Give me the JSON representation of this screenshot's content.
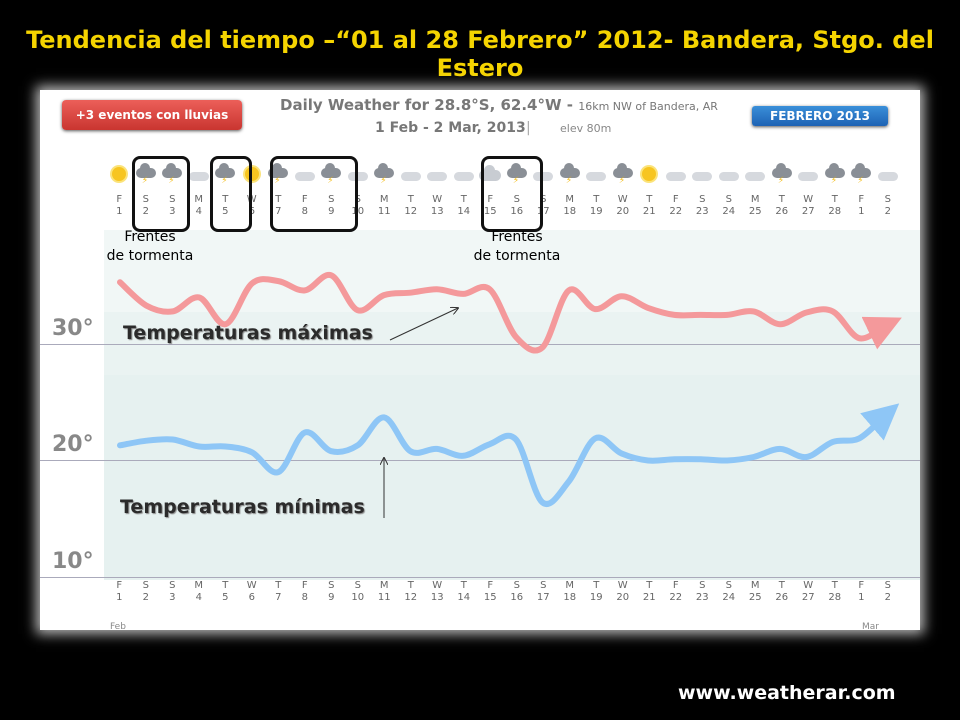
{
  "title": "Tendencia del tiempo –“01 al 28 Febrero” 2012- Bandera, Stgo. del Estero",
  "badges": {
    "events": "+3 eventos con lluvias",
    "month": "FEBRERO 2013"
  },
  "header": {
    "line1_main": "Daily Weather for 28.8°S, 62.4°W - ",
    "line1_small": "16km NW of Bandera, AR",
    "dates": "1 Feb - 2 Mar, 2013",
    "separator": "|",
    "elev": "elev 80m"
  },
  "fronts": [
    "Frentes",
    "de tormenta"
  ],
  "annotations": {
    "max": "Temperaturas máximas",
    "min": "Temperaturas mínimas"
  },
  "month_labels": {
    "start": "Feb",
    "end": "Mar"
  },
  "footer": "www.weatherar.com",
  "colors": {
    "max_line": "#f4999b",
    "min_line": "#8ec6f6",
    "title": "#f5d400"
  },
  "icons": [
    "sun",
    "storm",
    "storm",
    "suncloud",
    "storm",
    "sun",
    "storm",
    "suncloud",
    "storm",
    "suncloud",
    "storm",
    "suncloud",
    "suncloud",
    "suncloud",
    "cloud",
    "storm",
    "suncloud",
    "storm",
    "suncloud",
    "storm",
    "sun",
    "suncloud",
    "suncloud",
    "suncloud",
    "suncloud",
    "storm",
    "suncloud",
    "storm",
    "storm",
    "suncloud"
  ],
  "chart_data": {
    "type": "line",
    "title": "Daily Weather for 28.8°S, 62.4°W - 16km NW of Bandera, AR",
    "categories": [
      "1",
      "2",
      "3",
      "4",
      "5",
      "6",
      "7",
      "8",
      "9",
      "10",
      "11",
      "12",
      "13",
      "14",
      "15",
      "16",
      "17",
      "18",
      "19",
      "20",
      "21",
      "22",
      "23",
      "24",
      "25",
      "26",
      "27",
      "28",
      "1",
      "2"
    ],
    "day_names": [
      "F",
      "S",
      "S",
      "M",
      "T",
      "W",
      "T",
      "F",
      "S",
      "S",
      "M",
      "T",
      "W",
      "T",
      "F",
      "S",
      "S",
      "M",
      "T",
      "W",
      "T",
      "F",
      "S",
      "S",
      "M",
      "T",
      "W",
      "T",
      "F",
      "S"
    ],
    "y_ticks": [
      "30°",
      "20°",
      "10°"
    ],
    "ylim": [
      9.3,
      38.4
    ],
    "series": [
      {
        "name": "Temperaturas máximas",
        "values": [
          35.3,
          33.3,
          32.8,
          34.0,
          31.7,
          35.2,
          35.4,
          34.6,
          35.9,
          32.9,
          34.2,
          34.4,
          34.7,
          34.3,
          34.7,
          30.6,
          29.7,
          34.6,
          33.0,
          34.1,
          33.1,
          32.5,
          32.5,
          32.5,
          32.8,
          31.7,
          32.7,
          32.8,
          30.5,
          31.6
        ]
      },
      {
        "name": "Temperaturas mínimas",
        "values": [
          21.3,
          21.7,
          21.8,
          21.2,
          21.2,
          20.7,
          19.0,
          22.4,
          20.8,
          21.3,
          23.7,
          20.8,
          21.0,
          20.4,
          21.4,
          21.8,
          16.4,
          18.2,
          21.9,
          20.6,
          20.0,
          20.1,
          20.1,
          20.0,
          20.3,
          21.0,
          20.3,
          21.6,
          21.9,
          23.9
        ]
      }
    ]
  }
}
